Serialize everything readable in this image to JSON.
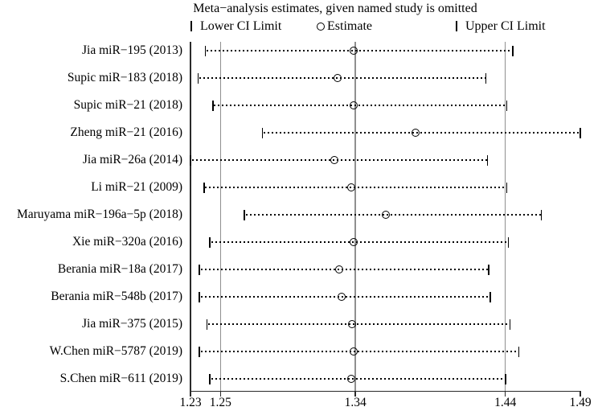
{
  "title": "Meta−analysis estimates, given named study is omitted",
  "legend": {
    "lower_label": "Lower CI Limit",
    "estimate_label": "Estimate",
    "upper_label": "Upper CI Limit"
  },
  "chart_data": {
    "type": "forest",
    "title": "Meta−analysis estimates, given named study is omitted",
    "xlabel": "",
    "ylabel": "",
    "xlim": [
      1.23,
      1.49
    ],
    "x_ticks": [
      1.23,
      1.25,
      1.34,
      1.44,
      1.49
    ],
    "x_tick_labels": [
      "1.23",
      "1.25",
      "1.34",
      "1.44",
      "1.49"
    ],
    "ref_lines": [
      1.25,
      1.34,
      1.44
    ],
    "left_edge_line": 1.23,
    "grid": false,
    "legend_position": "top",
    "colors": {
      "marker": "#000000",
      "ref_line": "#8f8f8f",
      "text": "#000000"
    },
    "studies": [
      {
        "label": "Jia miR−195 (2013)",
        "lower": 1.24,
        "estimate": 1.339,
        "upper": 1.445
      },
      {
        "label": "Supic miR−183 (2018)",
        "lower": 1.235,
        "estimate": 1.328,
        "upper": 1.427
      },
      {
        "label": "Supic miR−21 (2018)",
        "lower": 1.245,
        "estimate": 1.339,
        "upper": 1.441
      },
      {
        "label": "Zheng miR−21 (2016)",
        "lower": 1.278,
        "estimate": 1.38,
        "upper": 1.49
      },
      {
        "label": "Jia miR−26a (2014)",
        "lower": 1.23,
        "estimate": 1.326,
        "upper": 1.428
      },
      {
        "label": "Li miR−21 (2009)",
        "lower": 1.239,
        "estimate": 1.337,
        "upper": 1.441
      },
      {
        "label": "Maruyama miR−196a−5p (2018)",
        "lower": 1.266,
        "estimate": 1.36,
        "upper": 1.464
      },
      {
        "label": "Xie miR−320a (2016)",
        "lower": 1.243,
        "estimate": 1.339,
        "upper": 1.442
      },
      {
        "label": "Berania miR−18a (2017)",
        "lower": 1.236,
        "estimate": 1.329,
        "upper": 1.429
      },
      {
        "label": "Berania miR−548b (2017)",
        "lower": 1.236,
        "estimate": 1.331,
        "upper": 1.43
      },
      {
        "label": "Jia miR−375 (2015)",
        "lower": 1.241,
        "estimate": 1.338,
        "upper": 1.443
      },
      {
        "label": "W.Chen miR−5787 (2019)",
        "lower": 1.236,
        "estimate": 1.339,
        "upper": 1.449
      },
      {
        "label": "S.Chen miR−611 (2019)",
        "lower": 1.243,
        "estimate": 1.337,
        "upper": 1.44
      }
    ]
  }
}
